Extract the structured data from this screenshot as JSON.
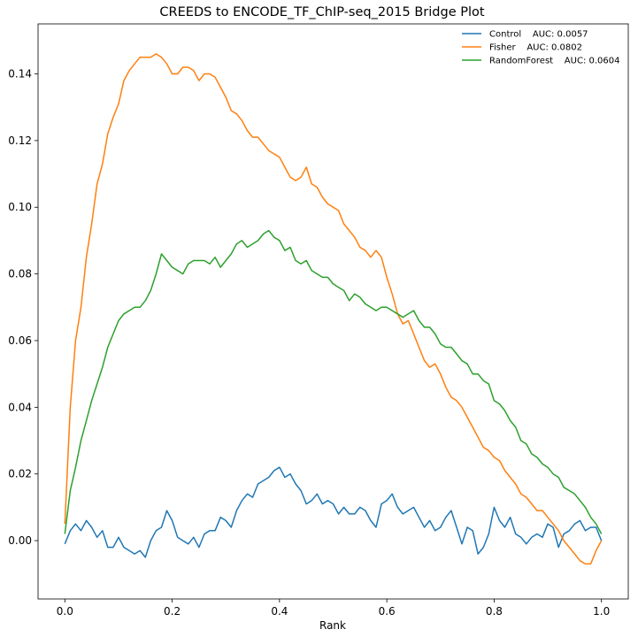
{
  "chart_data": {
    "type": "line",
    "title": "CREEDS to ENCODE_TF_ChIP-seq_2015 Bridge Plot",
    "xlabel": "Rank",
    "ylabel": "",
    "xlim": [
      -0.05,
      1.05
    ],
    "ylim": [
      -0.0175,
      0.155
    ],
    "xticks": [
      0.0,
      0.2,
      0.4,
      0.6,
      0.8,
      1.0
    ],
    "xtick_labels": [
      "0.0",
      "0.2",
      "0.4",
      "0.6",
      "0.8",
      "1.0"
    ],
    "yticks": [
      0.0,
      0.02,
      0.04,
      0.06,
      0.08,
      0.1,
      0.12,
      0.14
    ],
    "ytick_labels": [
      "0.00",
      "0.02",
      "0.04",
      "0.06",
      "0.08",
      "0.10",
      "0.12",
      "0.14"
    ],
    "grid": false,
    "legend_position": "top-right",
    "series": [
      {
        "name": "Control",
        "legend_label": "Control    AUC: 0.0057",
        "color": "#1f77b4",
        "x": [
          0.0,
          0.01,
          0.02,
          0.03,
          0.04,
          0.05,
          0.06,
          0.07,
          0.08,
          0.09,
          0.1,
          0.11,
          0.12,
          0.13,
          0.14,
          0.15,
          0.16,
          0.17,
          0.18,
          0.19,
          0.2,
          0.21,
          0.22,
          0.23,
          0.24,
          0.25,
          0.26,
          0.27,
          0.28,
          0.29,
          0.3,
          0.31,
          0.32,
          0.33,
          0.34,
          0.35,
          0.36,
          0.37,
          0.38,
          0.39,
          0.4,
          0.41,
          0.42,
          0.43,
          0.44,
          0.45,
          0.46,
          0.47,
          0.48,
          0.49,
          0.5,
          0.51,
          0.52,
          0.53,
          0.54,
          0.55,
          0.56,
          0.57,
          0.58,
          0.59,
          0.6,
          0.61,
          0.62,
          0.63,
          0.64,
          0.65,
          0.66,
          0.67,
          0.68,
          0.69,
          0.7,
          0.71,
          0.72,
          0.73,
          0.74,
          0.75,
          0.76,
          0.77,
          0.78,
          0.79,
          0.8,
          0.81,
          0.82,
          0.83,
          0.84,
          0.85,
          0.86,
          0.87,
          0.88,
          0.89,
          0.9,
          0.91,
          0.92,
          0.93,
          0.94,
          0.95,
          0.96,
          0.97,
          0.98,
          0.99,
          1.0
        ],
        "y": [
          -0.001,
          0.003,
          0.005,
          0.003,
          0.006,
          0.004,
          0.001,
          0.003,
          -0.002,
          -0.002,
          0.001,
          -0.002,
          -0.003,
          -0.004,
          -0.003,
          -0.005,
          0.0,
          0.003,
          0.004,
          0.009,
          0.006,
          0.001,
          0.0,
          -0.001,
          0.001,
          -0.002,
          0.002,
          0.003,
          0.003,
          0.007,
          0.006,
          0.004,
          0.009,
          0.012,
          0.014,
          0.013,
          0.017,
          0.018,
          0.019,
          0.021,
          0.022,
          0.019,
          0.02,
          0.017,
          0.015,
          0.011,
          0.012,
          0.014,
          0.011,
          0.012,
          0.011,
          0.008,
          0.01,
          0.008,
          0.008,
          0.01,
          0.009,
          0.006,
          0.004,
          0.011,
          0.012,
          0.014,
          0.01,
          0.008,
          0.009,
          0.01,
          0.007,
          0.004,
          0.006,
          0.003,
          0.004,
          0.007,
          0.009,
          0.004,
          -0.001,
          0.004,
          0.003,
          -0.004,
          -0.002,
          0.002,
          0.01,
          0.006,
          0.004,
          0.007,
          0.002,
          0.001,
          -0.001,
          0.001,
          0.002,
          0.001,
          0.005,
          0.004,
          -0.002,
          0.002,
          0.003,
          0.005,
          0.006,
          0.003,
          0.004,
          0.004,
          0.0
        ]
      },
      {
        "name": "Fisher",
        "legend_label": "Fisher    AUC: 0.0802",
        "color": "#ff7f0e",
        "x": [
          0.0,
          0.01,
          0.02,
          0.03,
          0.04,
          0.05,
          0.06,
          0.07,
          0.08,
          0.09,
          0.1,
          0.11,
          0.12,
          0.13,
          0.14,
          0.15,
          0.16,
          0.17,
          0.18,
          0.19,
          0.2,
          0.21,
          0.22,
          0.23,
          0.24,
          0.25,
          0.26,
          0.27,
          0.28,
          0.29,
          0.3,
          0.31,
          0.32,
          0.33,
          0.34,
          0.35,
          0.36,
          0.37,
          0.38,
          0.39,
          0.4,
          0.41,
          0.42,
          0.43,
          0.44,
          0.45,
          0.46,
          0.47,
          0.48,
          0.49,
          0.5,
          0.51,
          0.52,
          0.53,
          0.54,
          0.55,
          0.56,
          0.57,
          0.58,
          0.59,
          0.6,
          0.61,
          0.62,
          0.63,
          0.64,
          0.65,
          0.66,
          0.67,
          0.68,
          0.69,
          0.7,
          0.71,
          0.72,
          0.73,
          0.74,
          0.75,
          0.76,
          0.77,
          0.78,
          0.79,
          0.8,
          0.81,
          0.82,
          0.83,
          0.84,
          0.85,
          0.86,
          0.87,
          0.88,
          0.89,
          0.9,
          0.91,
          0.92,
          0.93,
          0.94,
          0.95,
          0.96,
          0.97,
          0.98,
          0.99,
          1.0
        ],
        "y": [
          0.005,
          0.04,
          0.06,
          0.07,
          0.085,
          0.095,
          0.107,
          0.113,
          0.122,
          0.127,
          0.131,
          0.138,
          0.141,
          0.143,
          0.145,
          0.145,
          0.145,
          0.146,
          0.145,
          0.143,
          0.14,
          0.14,
          0.142,
          0.142,
          0.141,
          0.138,
          0.14,
          0.14,
          0.139,
          0.136,
          0.133,
          0.129,
          0.128,
          0.126,
          0.123,
          0.121,
          0.121,
          0.119,
          0.117,
          0.116,
          0.115,
          0.112,
          0.109,
          0.108,
          0.109,
          0.112,
          0.107,
          0.106,
          0.103,
          0.101,
          0.1,
          0.099,
          0.095,
          0.093,
          0.091,
          0.088,
          0.087,
          0.085,
          0.087,
          0.085,
          0.079,
          0.074,
          0.068,
          0.065,
          0.066,
          0.062,
          0.058,
          0.054,
          0.052,
          0.053,
          0.05,
          0.046,
          0.043,
          0.042,
          0.04,
          0.037,
          0.034,
          0.031,
          0.028,
          0.027,
          0.025,
          0.024,
          0.021,
          0.019,
          0.017,
          0.014,
          0.013,
          0.011,
          0.009,
          0.009,
          0.007,
          0.005,
          0.003,
          0.0,
          -0.002,
          -0.004,
          -0.006,
          -0.007,
          -0.007,
          -0.003,
          0.0
        ]
      },
      {
        "name": "RandomForest",
        "legend_label": "RandomForest    AUC: 0.0604",
        "color": "#2ca02c",
        "x": [
          0.0,
          0.01,
          0.02,
          0.03,
          0.04,
          0.05,
          0.06,
          0.07,
          0.08,
          0.09,
          0.1,
          0.11,
          0.12,
          0.13,
          0.14,
          0.15,
          0.16,
          0.17,
          0.18,
          0.19,
          0.2,
          0.21,
          0.22,
          0.23,
          0.24,
          0.25,
          0.26,
          0.27,
          0.28,
          0.29,
          0.3,
          0.31,
          0.32,
          0.33,
          0.34,
          0.35,
          0.36,
          0.37,
          0.38,
          0.39,
          0.4,
          0.41,
          0.42,
          0.43,
          0.44,
          0.45,
          0.46,
          0.47,
          0.48,
          0.49,
          0.5,
          0.51,
          0.52,
          0.53,
          0.54,
          0.55,
          0.56,
          0.57,
          0.58,
          0.59,
          0.6,
          0.61,
          0.62,
          0.63,
          0.64,
          0.65,
          0.66,
          0.67,
          0.68,
          0.69,
          0.7,
          0.71,
          0.72,
          0.73,
          0.74,
          0.75,
          0.76,
          0.77,
          0.78,
          0.79,
          0.8,
          0.81,
          0.82,
          0.83,
          0.84,
          0.85,
          0.86,
          0.87,
          0.88,
          0.89,
          0.9,
          0.91,
          0.92,
          0.93,
          0.94,
          0.95,
          0.96,
          0.97,
          0.98,
          0.99,
          1.0
        ],
        "y": [
          0.002,
          0.015,
          0.022,
          0.03,
          0.036,
          0.042,
          0.047,
          0.052,
          0.058,
          0.062,
          0.066,
          0.068,
          0.069,
          0.07,
          0.07,
          0.072,
          0.075,
          0.08,
          0.086,
          0.084,
          0.082,
          0.081,
          0.08,
          0.083,
          0.084,
          0.084,
          0.084,
          0.083,
          0.085,
          0.082,
          0.084,
          0.086,
          0.089,
          0.09,
          0.088,
          0.089,
          0.09,
          0.092,
          0.093,
          0.091,
          0.09,
          0.087,
          0.088,
          0.084,
          0.083,
          0.084,
          0.081,
          0.08,
          0.079,
          0.079,
          0.077,
          0.076,
          0.075,
          0.072,
          0.074,
          0.073,
          0.071,
          0.07,
          0.069,
          0.07,
          0.07,
          0.069,
          0.068,
          0.067,
          0.068,
          0.069,
          0.066,
          0.064,
          0.064,
          0.062,
          0.059,
          0.058,
          0.058,
          0.056,
          0.054,
          0.053,
          0.05,
          0.05,
          0.048,
          0.047,
          0.042,
          0.041,
          0.039,
          0.036,
          0.034,
          0.03,
          0.029,
          0.026,
          0.025,
          0.023,
          0.022,
          0.02,
          0.019,
          0.016,
          0.015,
          0.014,
          0.012,
          0.01,
          0.007,
          0.005,
          0.002
        ]
      }
    ]
  }
}
